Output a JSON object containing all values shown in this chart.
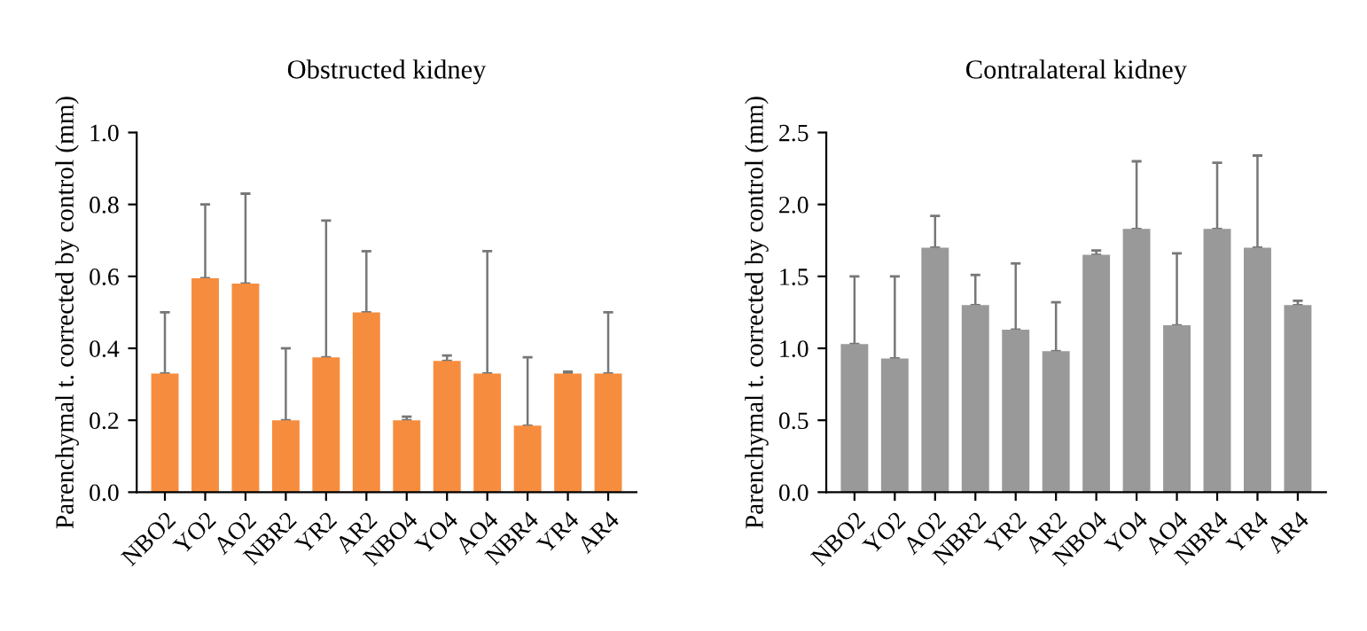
{
  "chart_data": [
    {
      "type": "bar",
      "title": "Obstructed kidney",
      "ylabel": "Parenchymal t. corrected by control (mm)",
      "categories": [
        "NBO2",
        "YO2",
        "AO2",
        "NBR2",
        "YR2",
        "AR2",
        "NBO4",
        "YO4",
        "AO4",
        "NBR4",
        "YR4",
        "AR4"
      ],
      "series": [
        {
          "color": "#f68d3e",
          "values": [
            0.33,
            0.595,
            0.58,
            0.2,
            0.375,
            0.5,
            0.2,
            0.365,
            0.33,
            0.185,
            0.33,
            0.33
          ],
          "errors": [
            [
              0.33,
              0.5
            ],
            [
              0.595,
              0.8
            ],
            [
              0.58,
              0.83
            ],
            [
              0.2,
              0.4
            ],
            [
              0.375,
              0.755
            ],
            [
              0.5,
              0.67
            ],
            [
              0.2,
              0.21
            ],
            [
              0.365,
              0.38
            ],
            [
              0.33,
              0.67
            ],
            [
              0.185,
              0.375
            ],
            [
              0.33,
              0.335
            ],
            [
              0.33,
              0.5
            ]
          ]
        }
      ],
      "ylim": [
        0,
        1.0
      ],
      "yticks": [
        {
          "value": 0,
          "label": "0.0"
        },
        0.2,
        0.4,
        0.6,
        0.8,
        {
          "value": 1.0,
          "label": "1.0"
        }
      ],
      "grid": false
    },
    {
      "type": "bar",
      "title": "Contralateral kidney",
      "ylabel": "Parenchymal t. corrected by control (mm)",
      "categories": [
        "NBO2",
        "YO2",
        "AO2",
        "NBR2",
        "YR2",
        "AR2",
        "NBO4",
        "YO4",
        "AO4",
        "NBR4",
        "YR4",
        "AR4"
      ],
      "series": [
        {
          "color": "#999999",
          "values": [
            1.03,
            0.93,
            1.7,
            1.3,
            1.13,
            0.98,
            1.65,
            1.83,
            1.16,
            1.83,
            1.7,
            1.3
          ],
          "errors": [
            [
              1.03,
              1.5
            ],
            [
              0.93,
              1.5
            ],
            [
              1.7,
              1.92
            ],
            [
              1.3,
              1.51
            ],
            [
              1.13,
              1.59
            ],
            [
              0.98,
              1.32
            ],
            [
              1.65,
              1.68
            ],
            [
              1.83,
              2.3
            ],
            [
              1.16,
              1.66
            ],
            [
              1.83,
              2.29
            ],
            [
              1.7,
              2.34
            ],
            [
              1.3,
              1.33
            ]
          ]
        }
      ],
      "ylim": [
        0,
        2.5
      ],
      "yticks": [
        {
          "value": 0,
          "label": "0.0"
        },
        0.5,
        {
          "value": 1.0,
          "label": "1.0"
        },
        1.5,
        {
          "value": 2.0,
          "label": "2.0"
        },
        2.5
      ],
      "grid": false
    }
  ]
}
